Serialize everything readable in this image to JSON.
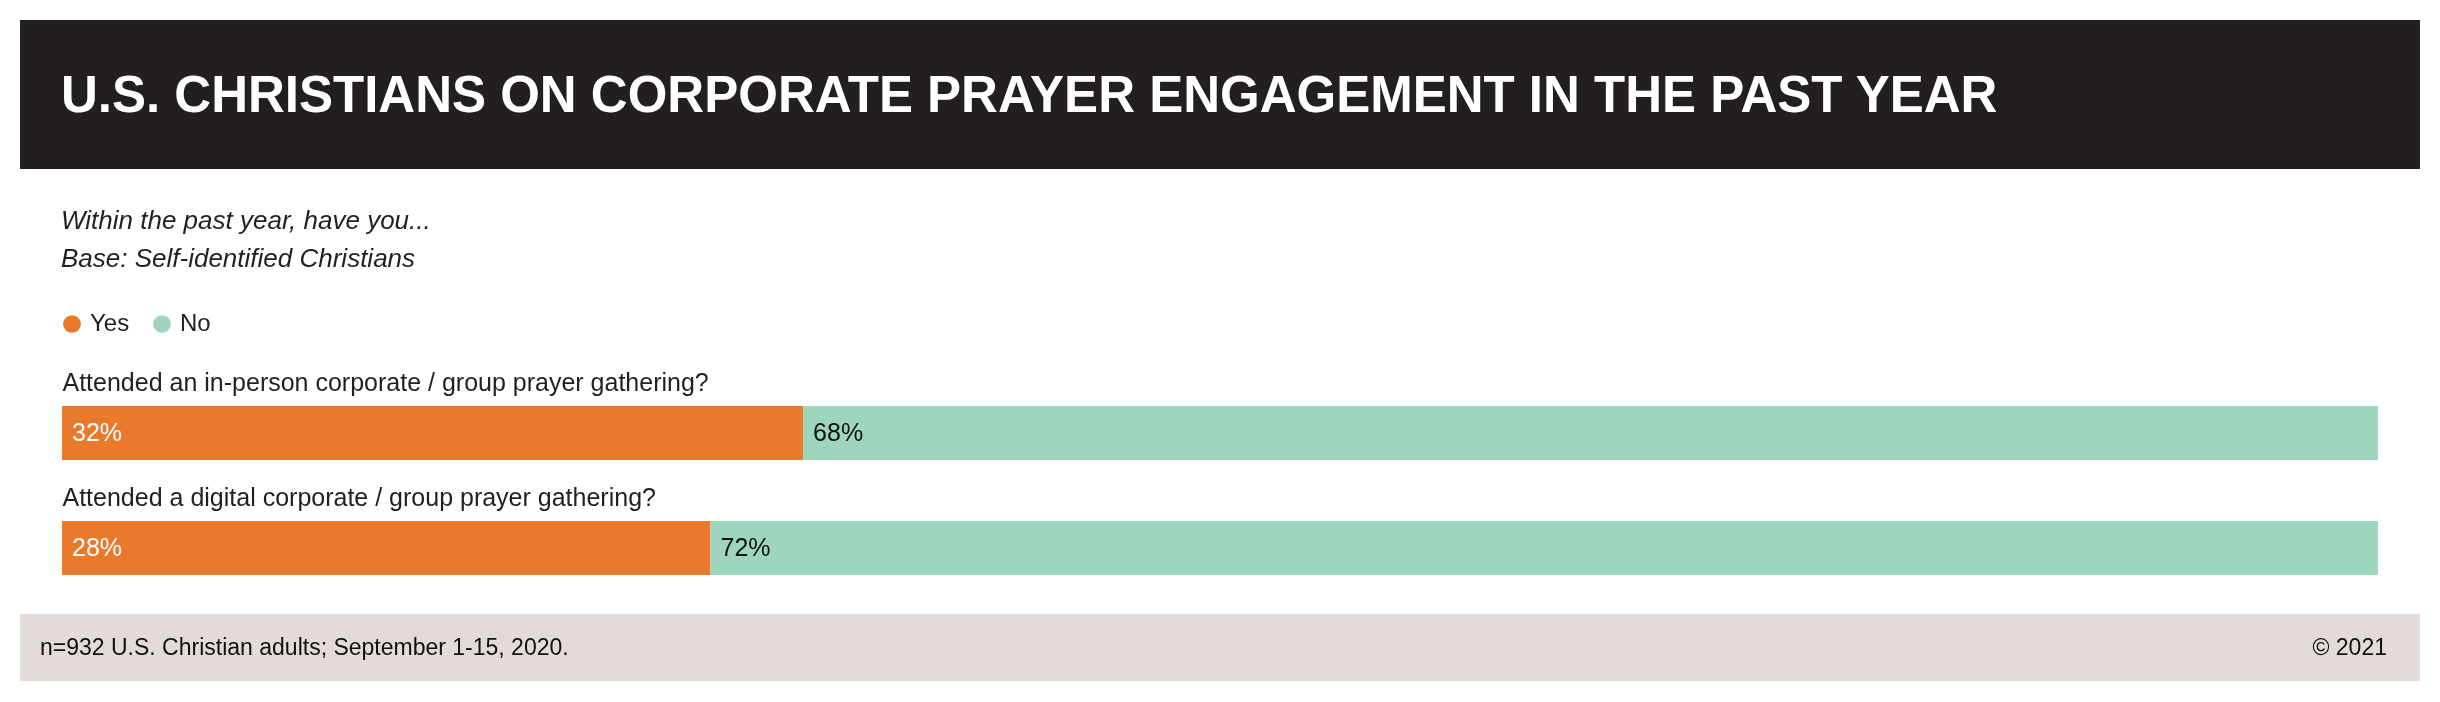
{
  "chart_data": {
    "type": "bar",
    "orientation": "horizontal",
    "stacked": true,
    "title": "U.S. CHRISTIANS ON CORPORATE PRAYER ENGAGEMENT IN THE PAST YEAR",
    "subtitle": "Within the past year, have you...",
    "annotations": [
      "Base: Self-identified Christians",
      "n=932 U.S. Christian adults; September 1-15, 2020.",
      "© 2021"
    ],
    "categories": [
      "Attended an in-person corporate / group prayer gathering?",
      "Attended a digital corporate / group prayer gathering?"
    ],
    "series": [
      {
        "name": "Yes",
        "color": "#ea7a2b",
        "values": [
          32,
          28
        ],
        "value_labels": [
          "32%",
          "28%"
        ]
      },
      {
        "name": "No",
        "color": "#9dd5bd",
        "values": [
          68,
          72
        ],
        "value_labels": [
          "68%",
          "72%"
        ]
      }
    ],
    "legend": "top left",
    "tick_labels": "y"
  }
}
